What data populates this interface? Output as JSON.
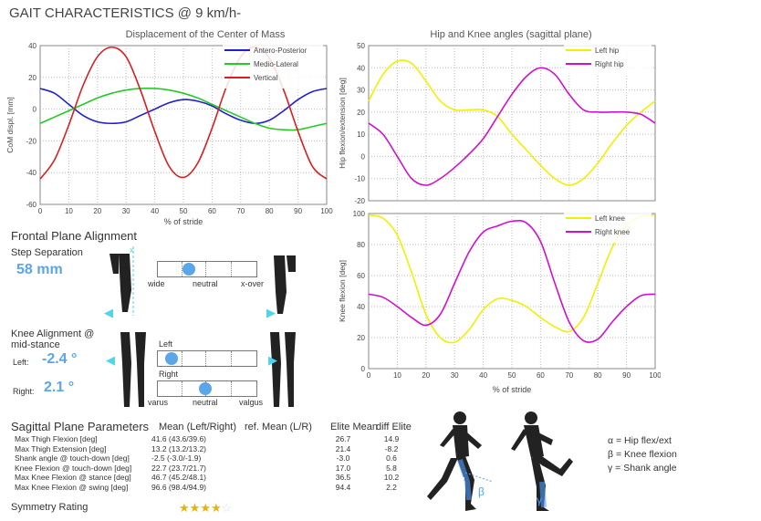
{
  "page_title": "GAIT CHARACTERISTICS @ 9  km/h-",
  "colors": {
    "blue": "#1f1fd0",
    "green": "#22cc22",
    "red": "#d81e1e",
    "yellow": "#f0f000",
    "magenta": "#d010d0",
    "accent": "#5aa6e8"
  },
  "chart_data": [
    {
      "type": "line",
      "title": "Displacement of the Center of Mass",
      "xlabel": "% of stride",
      "ylabel": "CoM displ. [mm]",
      "xlim": [
        0,
        100
      ],
      "ylim": [
        -60,
        40
      ],
      "xticks": [
        "0",
        "10",
        "20",
        "30",
        "40",
        "50",
        "60",
        "70",
        "80",
        "90",
        "100"
      ],
      "yticks": [
        "-60",
        "-40",
        "-20",
        "0",
        "20",
        "40"
      ],
      "grid": true,
      "legend": "top-right",
      "series": [
        {
          "name": "Antero-Posterior",
          "color": "#1f1fd0",
          "x": [
            0,
            5,
            10,
            15,
            20,
            25,
            30,
            35,
            40,
            45,
            50,
            55,
            60,
            65,
            70,
            75,
            80,
            85,
            90,
            95,
            100
          ],
          "values": [
            13,
            10,
            3,
            -4,
            -8,
            -9,
            -8,
            -4,
            0,
            4,
            6,
            5,
            2,
            -3,
            -7,
            -9,
            -7,
            -1,
            6,
            11,
            13
          ]
        },
        {
          "name": "Medio-Lateral",
          "color": "#22cc22",
          "x": [
            0,
            5,
            10,
            15,
            20,
            25,
            30,
            35,
            40,
            45,
            50,
            55,
            60,
            65,
            70,
            75,
            80,
            85,
            90,
            95,
            100
          ],
          "values": [
            -9,
            -5,
            -1,
            3,
            7,
            10,
            12,
            13,
            13,
            12,
            10,
            7,
            3,
            -1,
            -5,
            -9,
            -12,
            -13,
            -13,
            -11,
            -9
          ]
        },
        {
          "name": "Vertical",
          "color": "#d81e1e",
          "x": [
            0,
            5,
            10,
            15,
            20,
            25,
            30,
            35,
            40,
            45,
            50,
            55,
            60,
            65,
            70,
            75,
            80,
            85,
            90,
            95,
            100
          ],
          "values": [
            -44,
            -32,
            -10,
            15,
            33,
            39,
            33,
            12,
            -14,
            -36,
            -43,
            -34,
            -12,
            14,
            33,
            39,
            32,
            12,
            -14,
            -36,
            -44
          ]
        }
      ]
    },
    {
      "type": "line",
      "title": "Hip and Knee angles (sagittal plane)",
      "xlabel": "",
      "ylabel": "Hip flexion/extension [deg]",
      "xlim": [
        0,
        100
      ],
      "ylim": [
        -20,
        50
      ],
      "xticks": [],
      "yticks": [
        "-20",
        "-10",
        "0",
        "10",
        "20",
        "30",
        "40",
        "50"
      ],
      "grid": true,
      "legend": "top-right",
      "series": [
        {
          "name": "Left hip",
          "color": "#f0f000",
          "x": [
            0,
            5,
            10,
            15,
            20,
            25,
            30,
            35,
            40,
            45,
            50,
            55,
            60,
            65,
            70,
            75,
            80,
            85,
            90,
            95,
            100
          ],
          "values": [
            25,
            37,
            43,
            42,
            34,
            25,
            21,
            21,
            21,
            18,
            10,
            3,
            -4,
            -10,
            -13,
            -10,
            -3,
            6,
            14,
            20,
            25
          ]
        },
        {
          "name": "Right hip",
          "color": "#d010d0",
          "x": [
            0,
            5,
            10,
            15,
            20,
            25,
            30,
            35,
            40,
            45,
            50,
            55,
            60,
            65,
            70,
            75,
            80,
            85,
            90,
            95,
            100
          ],
          "values": [
            15,
            10,
            0,
            -10,
            -13,
            -10,
            -5,
            1,
            8,
            18,
            28,
            36,
            40,
            37,
            28,
            21,
            20,
            20,
            20,
            19,
            15
          ]
        }
      ]
    },
    {
      "type": "line",
      "title": "",
      "xlabel": "% of stride",
      "ylabel": "Knee flexion [deg]",
      "xlim": [
        0,
        100
      ],
      "ylim": [
        0,
        100
      ],
      "xticks": [
        "0",
        "10",
        "20",
        "30",
        "40",
        "50",
        "60",
        "70",
        "80",
        "90",
        "100"
      ],
      "yticks": [
        "0",
        "20",
        "40",
        "60",
        "80",
        "100"
      ],
      "grid": true,
      "legend": "top-right",
      "series": [
        {
          "name": "Left knee",
          "color": "#f0f000",
          "x": [
            0,
            5,
            10,
            15,
            20,
            25,
            30,
            35,
            40,
            45,
            50,
            55,
            60,
            65,
            70,
            75,
            80,
            85,
            90,
            95,
            100
          ],
          "values": [
            99,
            97,
            86,
            62,
            35,
            20,
            17,
            25,
            38,
            45,
            44,
            40,
            33,
            27,
            24,
            33,
            55,
            78,
            92,
            98,
            99
          ]
        },
        {
          "name": "Right knee",
          "color": "#d010d0",
          "x": [
            0,
            5,
            10,
            15,
            20,
            25,
            30,
            35,
            40,
            45,
            50,
            55,
            60,
            65,
            70,
            75,
            80,
            85,
            90,
            95,
            100
          ],
          "values": [
            48,
            46,
            40,
            33,
            28,
            35,
            55,
            75,
            88,
            92,
            95,
            94,
            82,
            55,
            30,
            18,
            19,
            30,
            40,
            47,
            48
          ]
        }
      ]
    }
  ],
  "frontal": {
    "heading": "Frontal Plane Alignment",
    "step_separation_label": "Step Separation",
    "step_separation_value": "58 mm",
    "step_slider": {
      "left": "wide",
      "mid": "neutral",
      "right": "x-over",
      "marker_fraction": 0.29
    },
    "knee_heading_1": "Knee Alignment @",
    "knee_heading_2": "mid-stance",
    "left_label": "Left:",
    "left_value": "-2.4 °",
    "right_label": "Right:",
    "right_value": "2.1 °",
    "knee_left_slider_label": "Left",
    "knee_left_marker_fraction": 0.08,
    "knee_right_slider_label": "Right",
    "knee_right_marker_fraction": 0.48,
    "knee_scale": {
      "left": "varus",
      "mid": "neutral",
      "right": "valgus"
    }
  },
  "sagittal": {
    "heading": "Sagittal Plane Parameters",
    "col_mean": "Mean (Left/Right)",
    "col_ref": "ref. Mean (L/R)",
    "col_elite": "Elite Mean",
    "col_diff": "diff Elite",
    "rows": [
      {
        "name": "Max Thigh Flexion [deg]",
        "mean": "41.6 (43.6/39.6)",
        "ref": "",
        "elite": "26.7",
        "diff": "14.9"
      },
      {
        "name": "Max Thigh Extension [deg]",
        "mean": "13.2 (13.2/13.2)",
        "ref": "",
        "elite": "21.4",
        "diff": "-8.2"
      },
      {
        "name": "Shank angle @ touch-down [deg]",
        "mean": "-2.5 (-3.0/-1.9)",
        "ref": "",
        "elite": "-3.0",
        "diff": "0.6"
      },
      {
        "name": "Knee Flexion @ touch-down [deg]",
        "mean": "22.7 (23.7/21.7)",
        "ref": "",
        "elite": "17.0",
        "diff": "5.8"
      },
      {
        "name": "Max Knee Flexion @ stance [deg]",
        "mean": "46.7 (45.2/48.1)",
        "ref": "",
        "elite": "36.5",
        "diff": "10.2"
      },
      {
        "name": "Max Knee Flexion @ swing [deg]",
        "mean": "96.6 (98.4/94.9)",
        "ref": "",
        "elite": "94.4",
        "diff": "2.2"
      }
    ],
    "symmetry_label": "Symmetry Rating",
    "symmetry_stars": 4,
    "symmetry_max": 5
  },
  "legend_angles": {
    "alpha": "α = Hip flex/ext",
    "beta": "β = Knee flexion",
    "gamma": "γ = Shank angle",
    "fig_alpha": "α",
    "fig_beta": "β",
    "fig_gamma": "γ"
  }
}
